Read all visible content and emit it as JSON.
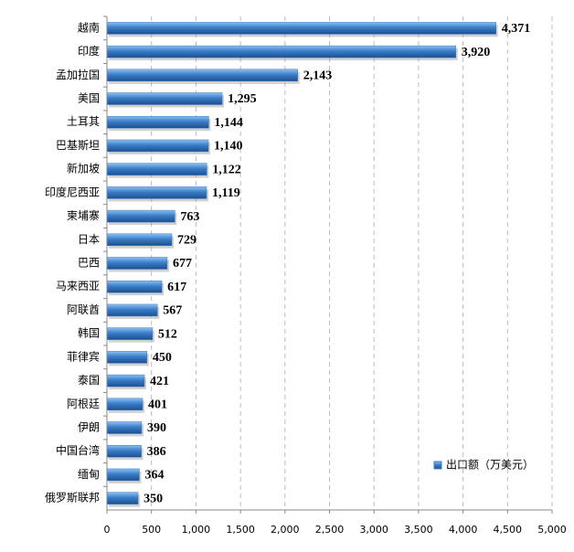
{
  "chart_data": {
    "type": "bar",
    "orientation": "horizontal",
    "categories": [
      "越南",
      "印度",
      "孟加拉国",
      "美国",
      "土耳其",
      "巴基斯坦",
      "新加坡",
      "印度尼西亚",
      "柬埔寨",
      "日本",
      "巴西",
      "马来西亚",
      "阿联酋",
      "韩国",
      "菲律宾",
      "泰国",
      "阿根廷",
      "伊朗",
      "中国台湾",
      "缅甸",
      "俄罗斯联邦"
    ],
    "series": [
      {
        "name": "出口额（万美元）",
        "color": "#3a7dc9",
        "values": [
          4371,
          3920,
          2143,
          1295,
          1144,
          1140,
          1122,
          1119,
          763,
          729,
          677,
          617,
          567,
          512,
          450,
          421,
          401,
          390,
          386,
          364,
          350
        ],
        "value_labels": [
          "4,371",
          "3,920",
          "2,143",
          "1,295",
          "1,144",
          "1,140",
          "1,122",
          "1,119",
          "763",
          "729",
          "677",
          "617",
          "567",
          "512",
          "450",
          "421",
          "401",
          "390",
          "386",
          "364",
          "350"
        ]
      }
    ],
    "xlim": [
      0,
      5000
    ],
    "xticks": [
      0,
      500,
      {
        "value": 1000,
        "label": "1,000"
      },
      {
        "value": 1500,
        "label": "1,500"
      },
      {
        "value": 2000,
        "label": "2,000"
      },
      {
        "value": 2500,
        "label": "2,500"
      },
      {
        "value": 3000,
        "label": "3,000"
      },
      {
        "value": 3500,
        "label": "3,500"
      },
      {
        "value": 4000,
        "label": "4,000"
      },
      {
        "value": 4500,
        "label": "4,500"
      },
      {
        "value": 5000,
        "label": "5,000"
      }
    ],
    "grid": true,
    "legend": "lower right"
  }
}
